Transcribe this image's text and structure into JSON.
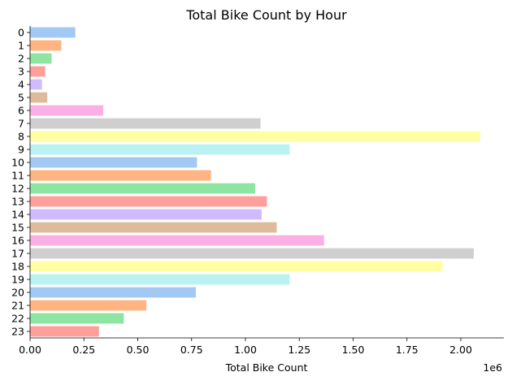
{
  "chart_data": {
    "type": "bar",
    "orientation": "horizontal",
    "title": "Total Bike Count by Hour",
    "xlabel": "Total Bike Count",
    "ylabel": "",
    "x_offset_label": "1e6",
    "xlim": [
      0,
      2.2
    ],
    "x_ticks": [
      "0.00",
      "0.25",
      "0.50",
      "0.75",
      "1.00",
      "1.25",
      "1.50",
      "1.75",
      "2.00"
    ],
    "categories": [
      "0",
      "1",
      "2",
      "3",
      "4",
      "5",
      "6",
      "7",
      "8",
      "9",
      "10",
      "11",
      "12",
      "13",
      "14",
      "15",
      "16",
      "17",
      "18",
      "19",
      "20",
      "21",
      "22",
      "23"
    ],
    "values": [
      0.21,
      0.145,
      0.1,
      0.07,
      0.055,
      0.08,
      0.34,
      1.07,
      2.09,
      1.205,
      0.775,
      0.84,
      1.045,
      1.1,
      1.075,
      1.145,
      1.365,
      2.06,
      1.915,
      1.205,
      0.77,
      0.54,
      0.435,
      0.32
    ],
    "colors": [
      "#a1c9f4",
      "#ffb482",
      "#8de5a1",
      "#ff9f9b",
      "#d0bbff",
      "#debb9b",
      "#fab0e4",
      "#cfcfcf",
      "#fffea3",
      "#b9f2f0"
    ],
    "grid": false,
    "legend": "none"
  }
}
